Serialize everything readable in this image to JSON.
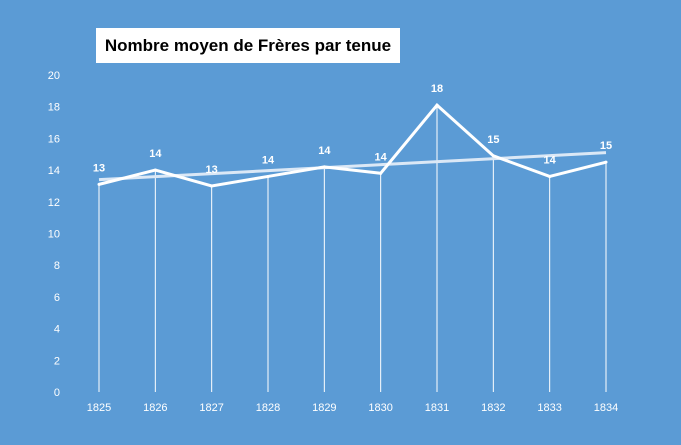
{
  "chart_data": {
    "type": "line",
    "title": "Nombre moyen de Frères par tenue",
    "xlabel": "",
    "ylabel": "",
    "categories": [
      "1825",
      "1826",
      "1827",
      "1828",
      "1829",
      "1830",
      "1831",
      "1832",
      "1833",
      "1834"
    ],
    "series": [
      {
        "values": [
          13.1,
          14.0,
          13.0,
          13.6,
          14.2,
          13.8,
          18.1,
          14.9,
          13.6,
          14.5
        ],
        "data_labels": [
          "13",
          "14",
          "13",
          "14",
          "14",
          "14",
          "18",
          "15",
          "14",
          "15"
        ],
        "color": "#ffffff"
      }
    ],
    "trendline": {
      "type": "linear",
      "start": 13.4,
      "end": 15.1,
      "color": "#dbe8f6"
    },
    "ylim": [
      0,
      20
    ],
    "yticks": [
      0,
      2,
      4,
      6,
      8,
      10,
      12,
      14,
      16,
      18,
      20
    ],
    "drop_lines": true,
    "grid": false,
    "legend": "none",
    "background": "#5b9bd5"
  }
}
